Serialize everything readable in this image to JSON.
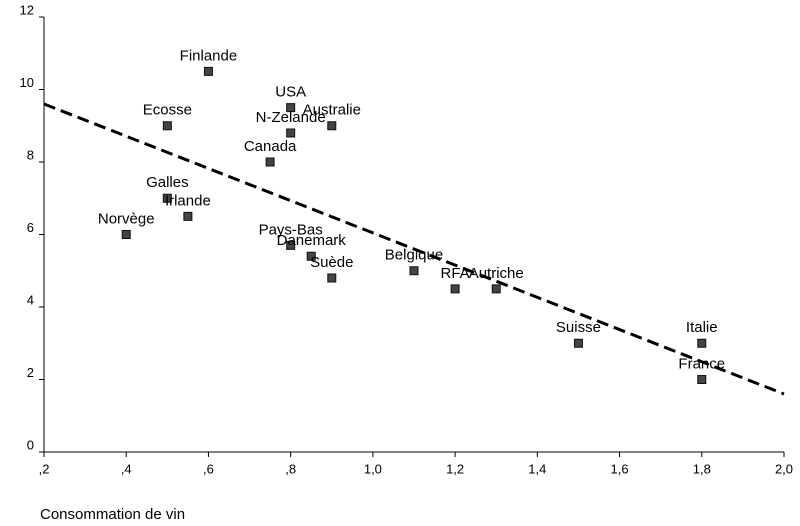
{
  "chart_data": {
    "type": "scatter",
    "xlabel": "Consommation de vin",
    "x": [
      0.6,
      0.8,
      0.9,
      0.8,
      0.5,
      0.75,
      0.5,
      0.55,
      0.4,
      0.8,
      0.85,
      0.9,
      1.1,
      1.2,
      1.3,
      1.5,
      1.8,
      1.8
    ],
    "values": [
      10.5,
      9.5,
      9,
      8.8,
      9,
      8,
      7,
      6.5,
      6,
      5.7,
      5.4,
      4.8,
      5,
      4.5,
      4.5,
      3,
      3,
      2
    ],
    "point_labels": [
      "Finlande",
      "USA",
      "Australie",
      "N-Zelande",
      "Ecosse",
      "Canada",
      "Galles",
      "Irlande",
      "Norvège",
      "Pays-Bas",
      "Danemark",
      "Suède",
      "Belgique",
      "RFA",
      "Autriche",
      "Suisse",
      "Italie",
      "France"
    ],
    "color": "#444444",
    "trendline": {
      "x": [
        0.2,
        2.0
      ],
      "values": [
        9.6,
        1.6
      ],
      "color": "#000000"
    },
    "xlim": [
      0.2,
      2.0
    ],
    "ylim": [
      0,
      12
    ],
    "xticks": [
      {
        "value": 0.2,
        "label": ",2"
      },
      {
        "value": 0.4,
        "label": ",4"
      },
      {
        "value": 0.6,
        "label": ",6"
      },
      {
        "value": 0.8,
        "label": ",8"
      },
      {
        "value": 1.0,
        "label": "1,0"
      },
      {
        "value": 1.2,
        "label": "1,2"
      },
      {
        "value": 1.4,
        "label": "1,4"
      },
      {
        "value": 1.6,
        "label": "1,6"
      },
      {
        "value": 1.8,
        "label": "1,8"
      },
      {
        "value": 2.0,
        "label": "2,0"
      }
    ],
    "yticks": [
      0,
      2,
      4,
      6,
      8,
      10,
      12
    ]
  }
}
